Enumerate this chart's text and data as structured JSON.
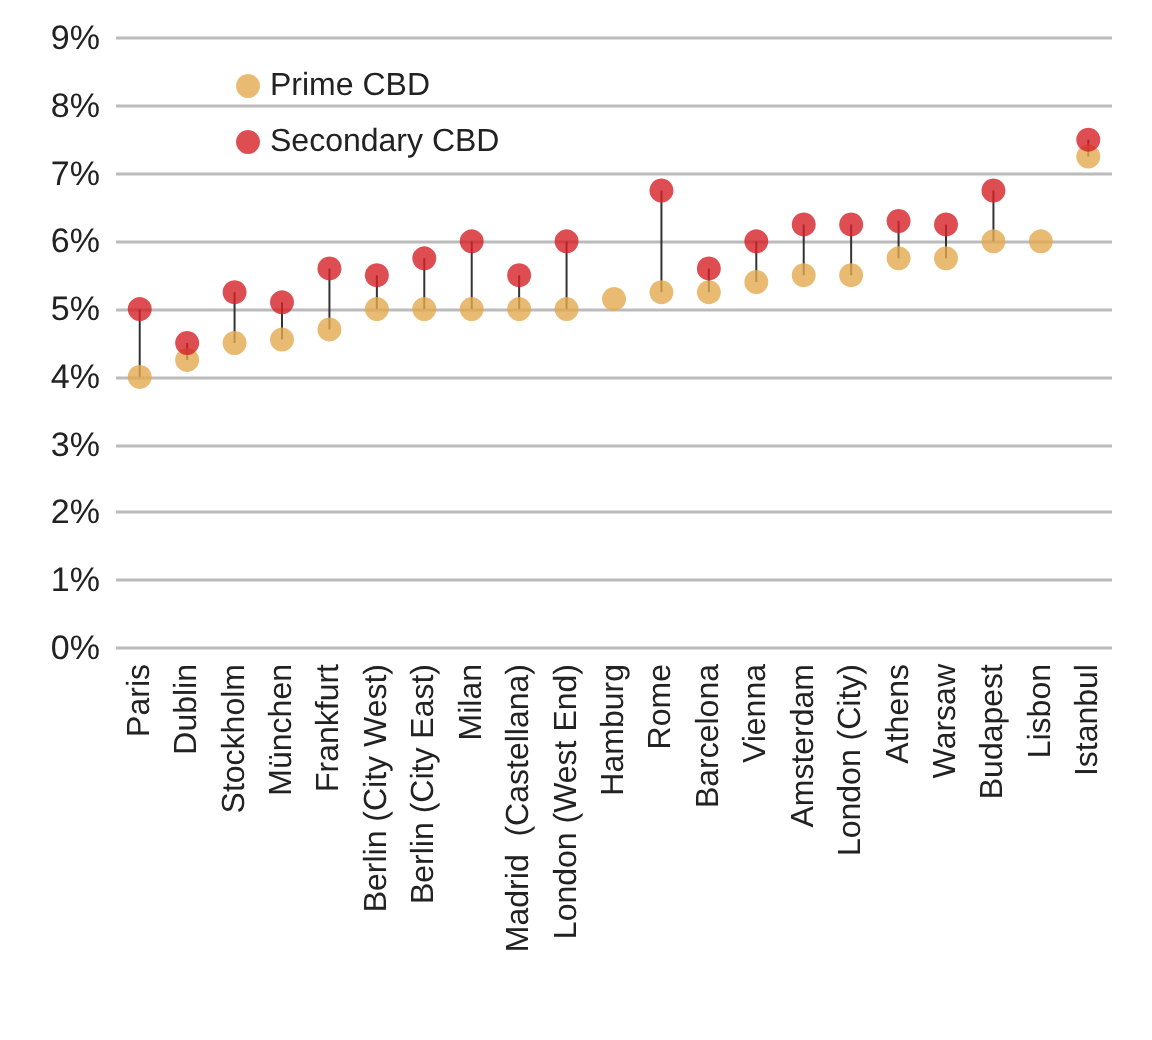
{
  "chart_data": {
    "type": "scatter",
    "categories": [
      "Paris",
      "Dublin",
      "Stockholm",
      "München",
      "Frankfurt",
      "Berlin (City West)",
      "Berlin (City East)",
      "Milan",
      "Madrid  (Castellana)",
      "London (West End)",
      "Hamburg",
      "Rome",
      "Barcelona",
      "Vienna",
      "Amsterdam",
      "London (City)",
      "Athens",
      "Warsaw",
      "Budapest",
      "Lisbon",
      "Istanbul"
    ],
    "series": [
      {
        "name": "Prime CBD",
        "color": "#e3a94f",
        "values": [
          4.0,
          4.25,
          4.5,
          4.55,
          4.7,
          5.0,
          5.0,
          5.0,
          5.0,
          5.0,
          5.15,
          5.25,
          5.25,
          5.4,
          5.5,
          5.5,
          5.75,
          5.75,
          6.0,
          6.0,
          7.25
        ]
      },
      {
        "name": "Secondary CBD",
        "color": "#d42027",
        "values": [
          5.0,
          4.5,
          5.25,
          5.1,
          5.6,
          5.5,
          5.75,
          6.0,
          5.5,
          6.0,
          null,
          6.75,
          5.6,
          6.0,
          6.25,
          6.25,
          6.3,
          6.25,
          6.75,
          null,
          7.5
        ]
      }
    ],
    "ylim": [
      0,
      9
    ],
    "yticks": [
      {
        "value": 0,
        "label": "0%"
      },
      {
        "value": 1,
        "label": "1%"
      },
      {
        "value": 2,
        "label": "2%"
      },
      {
        "value": 3,
        "label": "3%"
      },
      {
        "value": 4,
        "label": "4%"
      },
      {
        "value": 5,
        "label": "5%"
      },
      {
        "value": 6,
        "label": "6%"
      },
      {
        "value": 7,
        "label": "7%"
      },
      {
        "value": 8,
        "label": "8%"
      },
      {
        "value": 9,
        "label": "9%"
      }
    ],
    "grid": "y",
    "legend": "top left",
    "marker": "circle"
  }
}
